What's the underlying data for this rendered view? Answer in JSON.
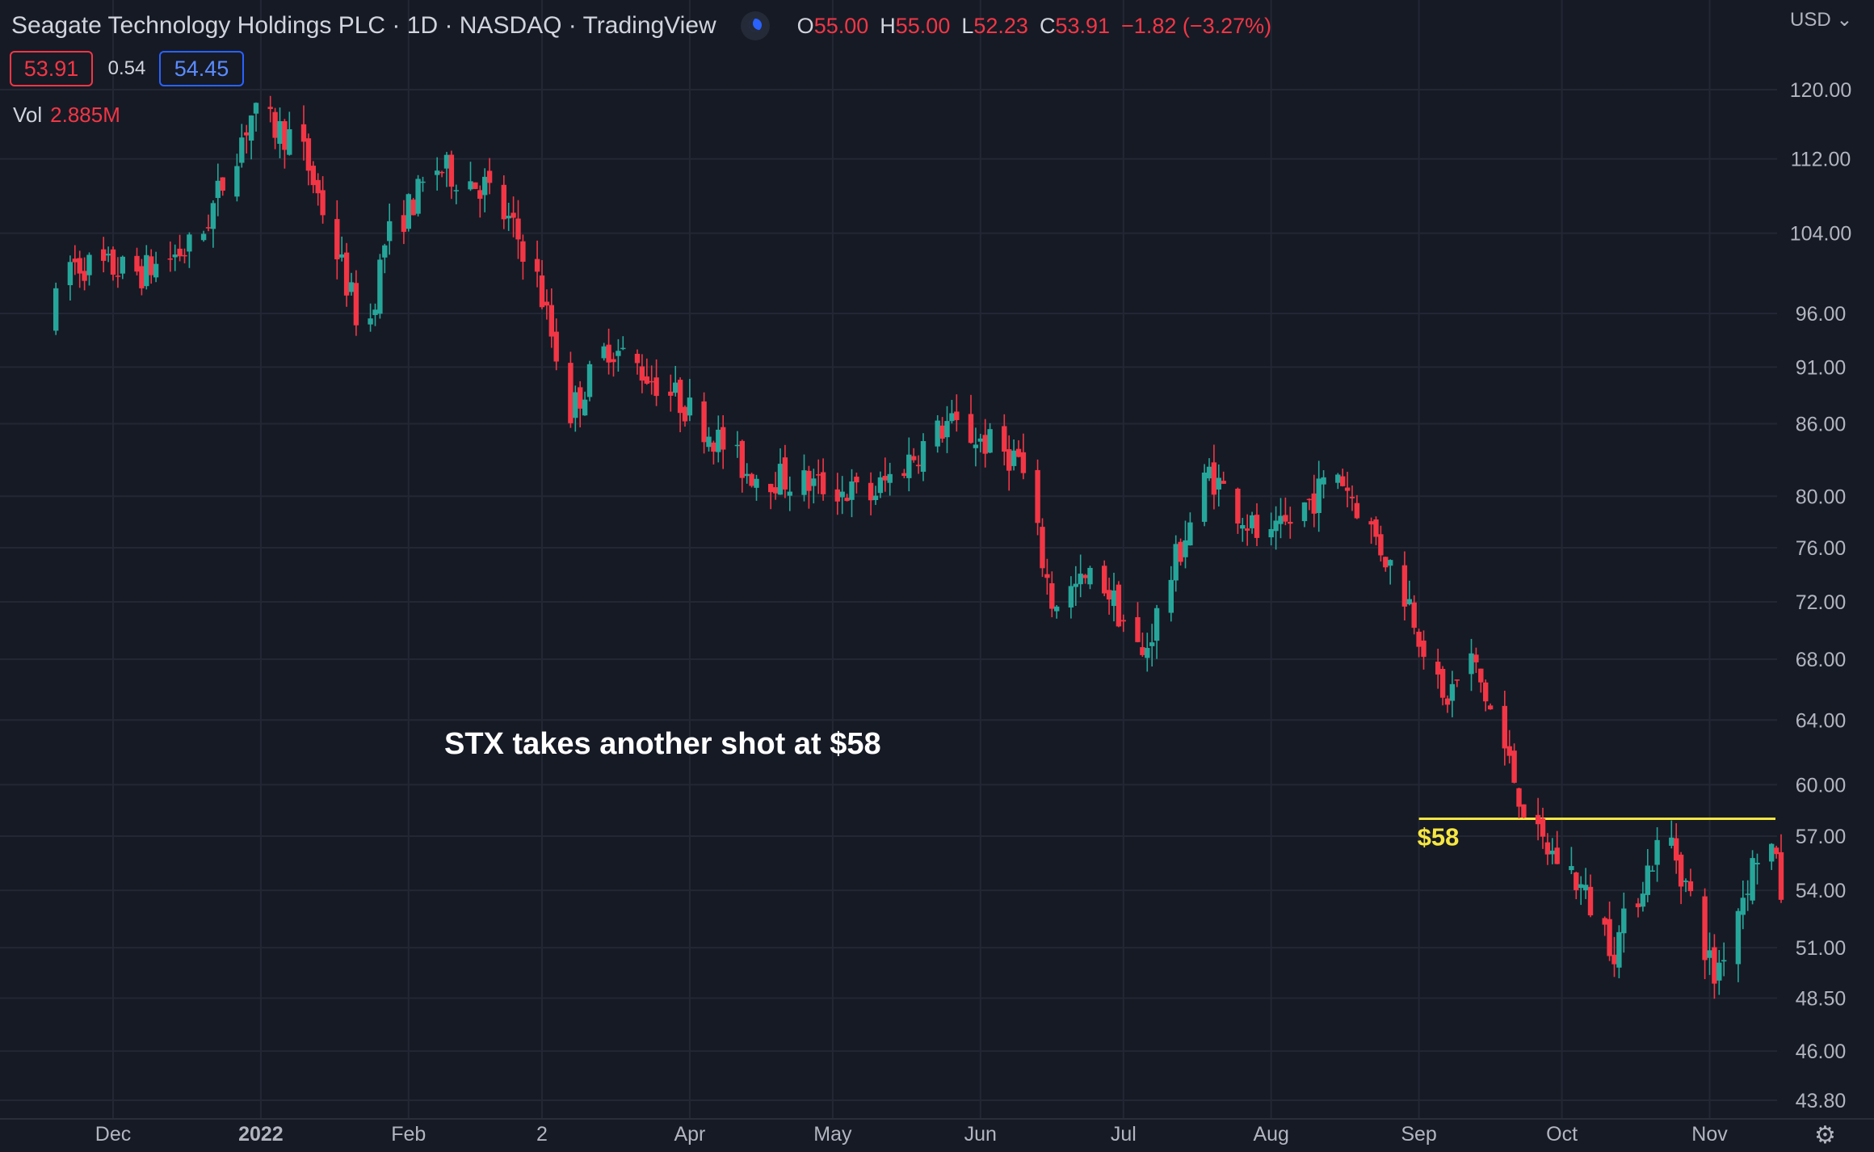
{
  "header": {
    "title": "Seagate Technology Holdings PLC · 1D · NASDAQ · TradingView",
    "open_label": "O",
    "open": "55.00",
    "high_label": "H",
    "high": "55.00",
    "low_label": "L",
    "low": "52.23",
    "close_label": "C",
    "close": "53.91",
    "change": "−1.82 (−3.27%)"
  },
  "price_boxes": {
    "bid": "53.91",
    "spread": "0.54",
    "ask": "54.45"
  },
  "volume": {
    "label": "Vol",
    "value": "2.885M"
  },
  "currency": "USD",
  "colors": {
    "up": "#26a69a",
    "down": "#f23645",
    "level_line": "#f5e642",
    "background": "#161a25"
  },
  "chart_data": {
    "type": "candlestick",
    "title": "",
    "annotation": "STX takes another shot at $58",
    "level": {
      "value": 58,
      "label": "$58"
    },
    "y_axis": {
      "scale": "log",
      "ticks": [
        "120.00",
        "112.00",
        "104.00",
        "96.00",
        "91.00",
        "86.00",
        "80.00",
        "76.00",
        "72.00",
        "68.00",
        "64.00",
        "60.00",
        "57.00",
        "54.00",
        "51.00",
        "48.50",
        "46.00",
        "43.80"
      ],
      "range": [
        43.8,
        120
      ]
    },
    "x_axis": {
      "ticks": [
        "Dec",
        "2022",
        "Feb",
        "2",
        "Apr",
        "May",
        "Jun",
        "Jul",
        "Aug",
        "Sep",
        "Oct",
        "Nov"
      ]
    },
    "segments": [
      {
        "from": "2021-11-19",
        "to": "2021-11-22",
        "open": 95,
        "close": 101
      },
      {
        "from": "2021-11-22",
        "to": "2021-12-08",
        "open": 101,
        "close": 100
      },
      {
        "from": "2021-12-08",
        "to": "2021-12-20",
        "open": 100,
        "close": 103
      },
      {
        "from": "2021-12-20",
        "to": "2021-12-31",
        "open": 103,
        "close": 117
      },
      {
        "from": "2021-12-31",
        "to": "2022-01-10",
        "open": 117,
        "close": 114
      },
      {
        "from": "2022-01-10",
        "to": "2022-01-24",
        "open": 114,
        "close": 93
      },
      {
        "from": "2022-01-24",
        "to": "2022-01-28",
        "open": 93,
        "close": 103
      },
      {
        "from": "2022-01-28",
        "to": "2022-02-08",
        "open": 103,
        "close": 111
      },
      {
        "from": "2022-02-08",
        "to": "2022-02-18",
        "open": 111,
        "close": 109
      },
      {
        "from": "2022-02-18",
        "to": "2022-02-28",
        "open": 109,
        "close": 101
      },
      {
        "from": "2022-02-28",
        "to": "2022-03-08",
        "open": 101,
        "close": 87
      },
      {
        "from": "2022-03-08",
        "to": "2022-03-16",
        "open": 87,
        "close": 93
      },
      {
        "from": "2022-03-16",
        "to": "2022-03-31",
        "open": 93,
        "close": 88
      },
      {
        "from": "2022-03-31",
        "to": "2022-04-14",
        "open": 88,
        "close": 82
      },
      {
        "from": "2022-04-14",
        "to": "2022-05-10",
        "open": 82,
        "close": 80
      },
      {
        "from": "2022-05-10",
        "to": "2022-05-26",
        "open": 80,
        "close": 86
      },
      {
        "from": "2022-05-26",
        "to": "2022-06-10",
        "open": 86,
        "close": 83
      },
      {
        "from": "2022-06-10",
        "to": "2022-06-17",
        "open": 83,
        "close": 72
      },
      {
        "from": "2022-06-17",
        "to": "2022-06-27",
        "open": 72,
        "close": 74
      },
      {
        "from": "2022-06-27",
        "to": "2022-07-06",
        "open": 74,
        "close": 68
      },
      {
        "from": "2022-07-06",
        "to": "2022-07-20",
        "open": 68,
        "close": 82
      },
      {
        "from": "2022-07-20",
        "to": "2022-08-01",
        "open": 82,
        "close": 76
      },
      {
        "from": "2022-08-01",
        "to": "2022-08-16",
        "open": 76,
        "close": 82
      },
      {
        "from": "2022-08-16",
        "to": "2022-08-31",
        "open": 82,
        "close": 72
      },
      {
        "from": "2022-08-31",
        "to": "2022-09-07",
        "open": 72,
        "close": 65
      },
      {
        "from": "2022-09-07",
        "to": "2022-09-13",
        "open": 65,
        "close": 68
      },
      {
        "from": "2022-09-13",
        "to": "2022-09-26",
        "open": 68,
        "close": 57
      },
      {
        "from": "2022-09-26",
        "to": "2022-10-04",
        "open": 57,
        "close": 55
      },
      {
        "from": "2022-10-04",
        "to": "2022-10-13",
        "open": 55,
        "close": 51
      },
      {
        "from": "2022-10-13",
        "to": "2022-10-24",
        "open": 51,
        "close": 57.5
      },
      {
        "from": "2022-10-24",
        "to": "2022-11-03",
        "open": 57.5,
        "close": 49.5
      },
      {
        "from": "2022-11-03",
        "to": "2022-11-14",
        "open": 49.5,
        "close": 57.5
      },
      {
        "from": "2022-11-14",
        "to": "2022-11-17",
        "open": 57.5,
        "close": 53.91
      }
    ],
    "grid": true,
    "legend": "none"
  }
}
